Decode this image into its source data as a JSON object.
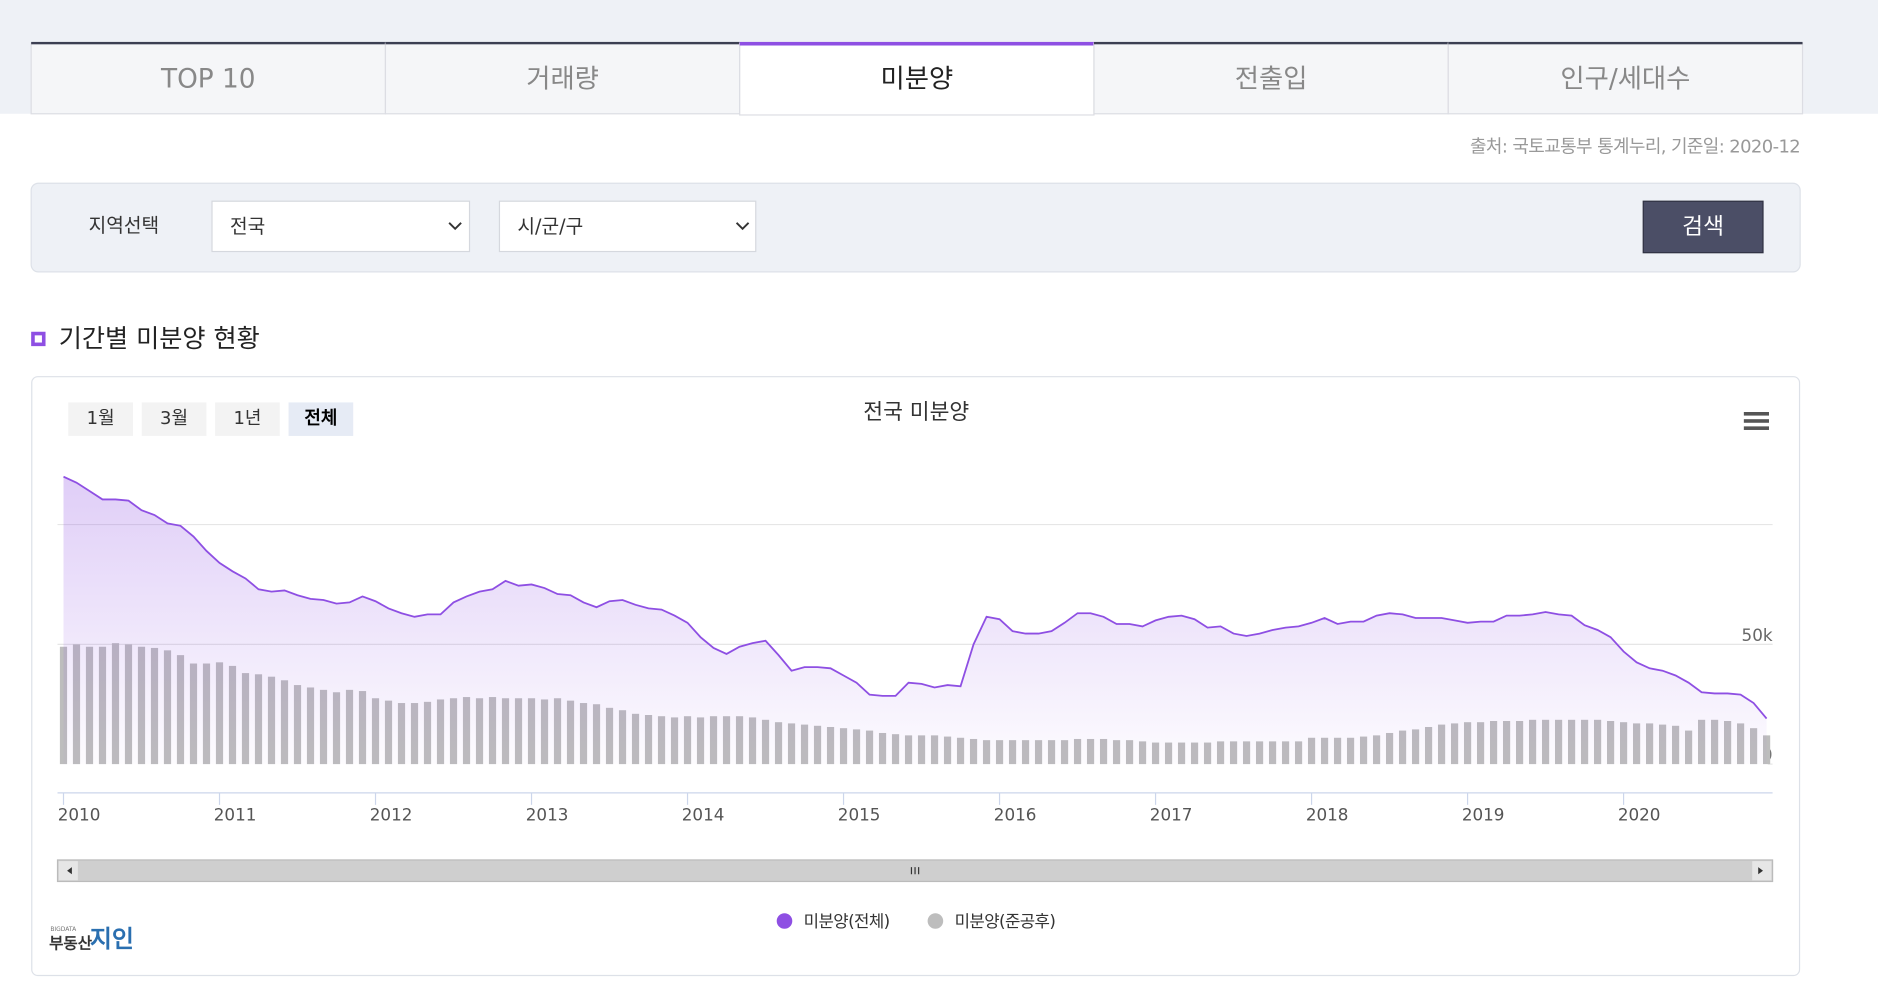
{
  "tabs": [
    "TOP 10",
    "거래량",
    "미분양",
    "전출입",
    "인구/세대수"
  ],
  "active_tab": 2,
  "source": "출처: 국토교통부 통계누리,  기준일: 2020-12",
  "filter": {
    "label": "지역선택",
    "region": "전국",
    "district": "시/군/구",
    "button": "검색"
  },
  "section_title": "기간별 미분양 현황",
  "range_buttons": [
    "1월",
    "3월",
    "1년",
    "전체"
  ],
  "active_range": 3,
  "logo": {
    "small": "BIGDATA",
    "left": "부동산",
    "right": "지인"
  },
  "chart_data": {
    "type": "area-bar",
    "title": "전국 미분양",
    "x": [
      "2010-01",
      "2010-02",
      "2010-03",
      "2010-04",
      "2010-05",
      "2010-06",
      "2010-07",
      "2010-08",
      "2010-09",
      "2010-10",
      "2010-11",
      "2010-12",
      "2011-01",
      "2011-02",
      "2011-03",
      "2011-04",
      "2011-05",
      "2011-06",
      "2011-07",
      "2011-08",
      "2011-09",
      "2011-10",
      "2011-11",
      "2011-12",
      "2012-01",
      "2012-02",
      "2012-03",
      "2012-04",
      "2012-05",
      "2012-06",
      "2012-07",
      "2012-08",
      "2012-09",
      "2012-10",
      "2012-11",
      "2012-12",
      "2013-01",
      "2013-02",
      "2013-03",
      "2013-04",
      "2013-05",
      "2013-06",
      "2013-07",
      "2013-08",
      "2013-09",
      "2013-10",
      "2013-11",
      "2013-12",
      "2014-01",
      "2014-02",
      "2014-03",
      "2014-04",
      "2014-05",
      "2014-06",
      "2014-07",
      "2014-08",
      "2014-09",
      "2014-10",
      "2014-11",
      "2014-12",
      "2015-01",
      "2015-02",
      "2015-03",
      "2015-04",
      "2015-05",
      "2015-06",
      "2015-07",
      "2015-08",
      "2015-09",
      "2015-10",
      "2015-11",
      "2015-12",
      "2016-01",
      "2016-02",
      "2016-03",
      "2016-04",
      "2016-05",
      "2016-06",
      "2016-07",
      "2016-08",
      "2016-09",
      "2016-10",
      "2016-11",
      "2016-12",
      "2017-01",
      "2017-02",
      "2017-03",
      "2017-04",
      "2017-05",
      "2017-06",
      "2017-07",
      "2017-08",
      "2017-09",
      "2017-10",
      "2017-11",
      "2017-12",
      "2018-01",
      "2018-02",
      "2018-03",
      "2018-04",
      "2018-05",
      "2018-06",
      "2018-07",
      "2018-08",
      "2018-09",
      "2018-10",
      "2018-11",
      "2018-12",
      "2019-01",
      "2019-02",
      "2019-03",
      "2019-04",
      "2019-05",
      "2019-06",
      "2019-07",
      "2019-08",
      "2019-09",
      "2019-10",
      "2019-11",
      "2019-12",
      "2020-01",
      "2020-02",
      "2020-03",
      "2020-04",
      "2020-05",
      "2020-06",
      "2020-07",
      "2020-08",
      "2020-09",
      "2020-10",
      "2020-11",
      "2020-12"
    ],
    "series": [
      {
        "name": "미분양(전체)",
        "color": "#8e4fe3",
        "values": [
          120000,
          117500,
          114000,
          110500,
          110500,
          110000,
          106000,
          104000,
          100500,
          99500,
          95000,
          89000,
          84000,
          80500,
          77500,
          73000,
          72000,
          72500,
          70500,
          69000,
          68500,
          67000,
          67500,
          70000,
          68000,
          65000,
          63000,
          61500,
          62500,
          62500,
          67500,
          70000,
          72000,
          73000,
          76500,
          74500,
          75000,
          73500,
          71000,
          70500,
          67500,
          65500,
          68000,
          68500,
          66500,
          65000,
          64500,
          62000,
          59000,
          53000,
          48500,
          46000,
          49000,
          50500,
          51500,
          45500,
          39000,
          40500,
          40500,
          40000,
          37000,
          34000,
          29000,
          28500,
          28500,
          34000,
          33500,
          32000,
          33000,
          32500,
          50000,
          61500,
          60500,
          55500,
          54500,
          54500,
          55500,
          59000,
          63000,
          63000,
          61500,
          58500,
          58500,
          57500,
          60000,
          61500,
          62000,
          60500,
          57000,
          57500,
          54500,
          53500,
          54500,
          56000,
          57000,
          57500,
          59000,
          61000,
          58500,
          59500,
          59500,
          62000,
          63000,
          62500,
          61000,
          61000,
          61000,
          60000,
          59000,
          59500,
          59500,
          62000,
          62000,
          62500,
          63500,
          62500,
          62000,
          58000,
          56000,
          53000,
          47000,
          42500,
          40000,
          39000,
          37000,
          34000,
          30000,
          29500,
          29500,
          29000,
          25500,
          19000
        ]
      },
      {
        "name": "미분양(준공후)",
        "color": "#bdbdbd",
        "values": [
          49000,
          50000,
          49000,
          49000,
          50500,
          50000,
          49000,
          48500,
          47500,
          45500,
          42000,
          42000,
          42500,
          41000,
          38000,
          37500,
          36500,
          35000,
          33000,
          32000,
          31000,
          30000,
          31000,
          30500,
          27500,
          26500,
          25500,
          25500,
          26000,
          27000,
          27500,
          28000,
          27500,
          28000,
          27500,
          27500,
          27500,
          27000,
          27500,
          26500,
          25500,
          25000,
          23500,
          22500,
          21000,
          20500,
          20000,
          19500,
          20000,
          19500,
          20000,
          20000,
          20000,
          19500,
          18500,
          17500,
          17000,
          16500,
          16000,
          15500,
          15000,
          14500,
          14000,
          13000,
          12500,
          12000,
          12000,
          12000,
          11500,
          11000,
          10500,
          10000,
          10000,
          10000,
          10000,
          10000,
          10000,
          10000,
          10500,
          10500,
          10500,
          10000,
          10000,
          9500,
          9000,
          9000,
          9000,
          9000,
          9000,
          9500,
          9500,
          9500,
          9500,
          9500,
          9500,
          9500,
          11000,
          11000,
          11000,
          11000,
          11500,
          12000,
          13000,
          14000,
          14500,
          15500,
          16500,
          17000,
          17500,
          17500,
          18000,
          18000,
          18000,
          18500,
          18500,
          18500,
          18500,
          18500,
          18500,
          18000,
          17500,
          17000,
          17000,
          16500,
          16000,
          14000,
          18500,
          18500,
          18000,
          17000,
          15000,
          12000
        ]
      }
    ],
    "ylim": [
      0,
      125000
    ],
    "yticks": [
      0,
      {
        "value": 50000,
        "label": "50k"
      }
    ],
    "gridlines": [
      100000,
      50000
    ],
    "xticks": [
      {
        "value": "2010-01",
        "label": "2010"
      },
      {
        "value": "2011-01",
        "label": "2011"
      },
      {
        "value": "2012-01",
        "label": "2012"
      },
      {
        "value": "2013-01",
        "label": "2013"
      },
      {
        "value": "2014-01",
        "label": "2014"
      },
      {
        "value": "2015-01",
        "label": "2015"
      },
      {
        "value": "2016-01",
        "label": "2016"
      },
      {
        "value": "2017-01",
        "label": "2017"
      },
      {
        "value": "2018-01",
        "label": "2018"
      },
      {
        "value": "2019-01",
        "label": "2019"
      },
      {
        "value": "2020-01",
        "label": "2020"
      }
    ],
    "legend": "bottom"
  }
}
